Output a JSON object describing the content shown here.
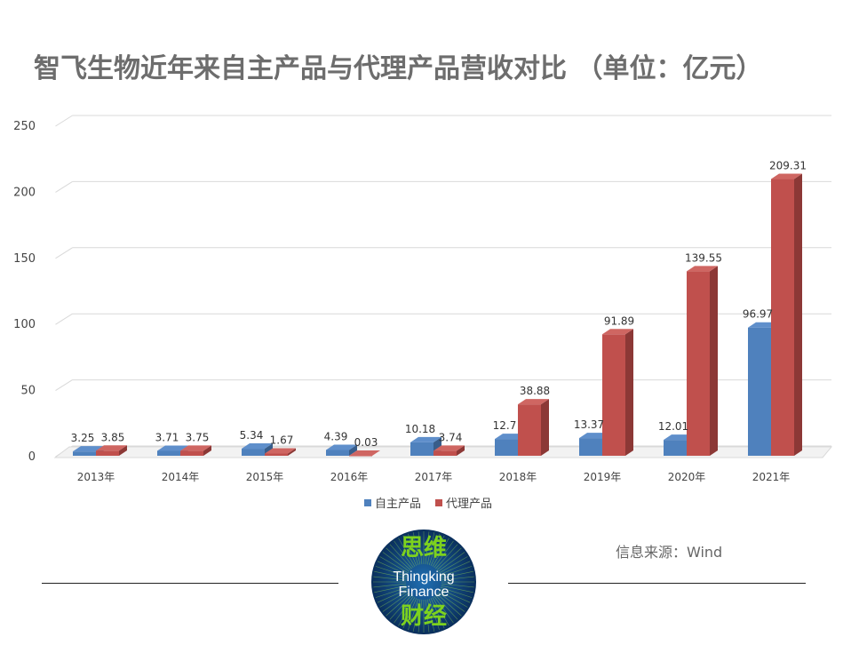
{
  "title": "智飞生物近年来自主产品与代理产品营收对比   （单位：亿元）",
  "source": "信息来源：Wind",
  "logo": {
    "top_text": "思维",
    "line1": "Thingking",
    "line2": "Finance",
    "bottom_text": "财经"
  },
  "colors": {
    "own": "#4F81BD",
    "own_dark": "#385D8A",
    "agency": "#C0504D",
    "agency_dark": "#8C3836",
    "grid": "#d9d9d9",
    "logo_bg": "#0d3a6e",
    "logo_green": "#7dd21e"
  },
  "chart_data": {
    "type": "bar",
    "style": "3d-clustered-column",
    "categories": [
      "2013年",
      "2014年",
      "2015年",
      "2016年",
      "2017年",
      "2018年",
      "2019年",
      "2020年",
      "2021年"
    ],
    "series": [
      {
        "name": "自主产品",
        "values": [
          3.25,
          3.71,
          5.34,
          4.39,
          10.18,
          12.7,
          13.37,
          12.01,
          96.97
        ]
      },
      {
        "name": "代理产品",
        "values": [
          3.85,
          3.75,
          1.67,
          0.03,
          3.74,
          38.88,
          91.89,
          139.55,
          209.31
        ]
      }
    ],
    "data_labels": {
      "自主产品": [
        "3.25",
        "3.71",
        "5.34",
        "4.39",
        "10.18",
        "12.7",
        "13.37",
        "12.01",
        "96.97"
      ],
      "代理产品": [
        "3.85",
        "3.75",
        "1.67",
        "0.03",
        "3.74",
        "38.88",
        "91.89",
        "139.55",
        "209.31"
      ]
    },
    "yticks": [
      "0",
      "50",
      "100",
      "150",
      "200",
      "250"
    ],
    "ylim": [
      0,
      250
    ],
    "grid": true,
    "legend": "bottom-center"
  }
}
